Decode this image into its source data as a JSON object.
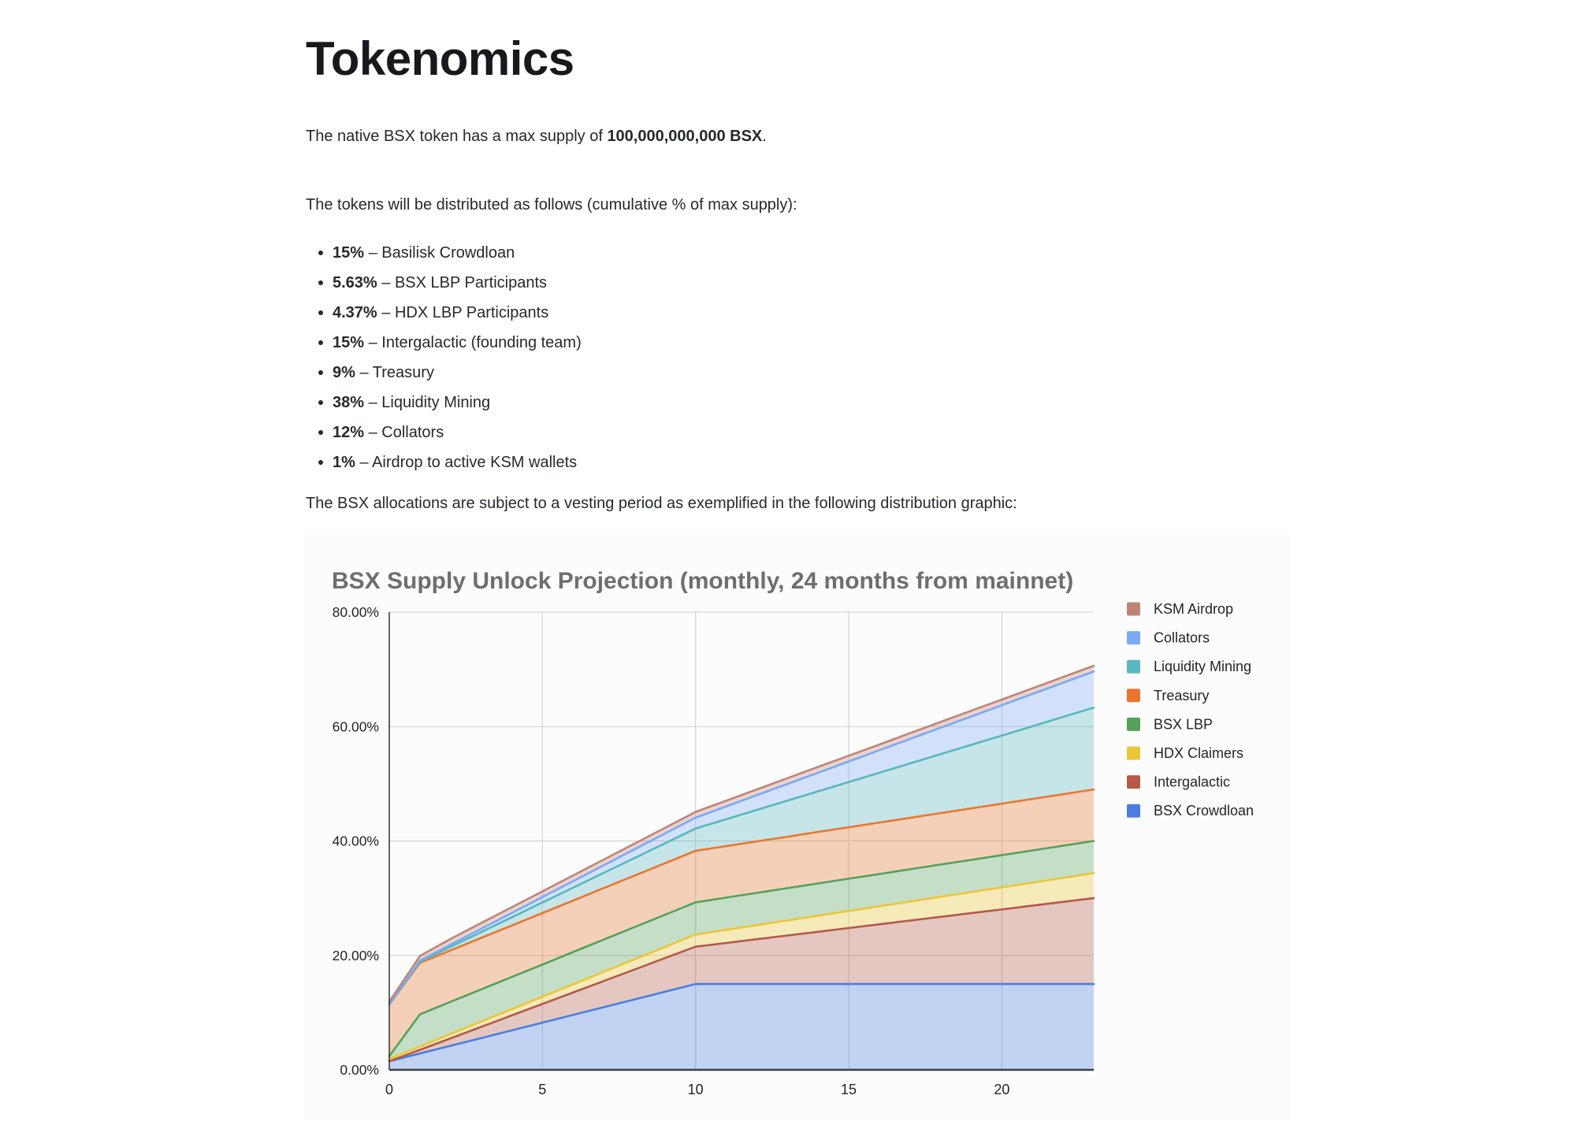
{
  "page": {
    "title": "Tokenomics",
    "intro": {
      "prefix": "The native BSX token has a max supply of ",
      "bold": "100,000,000,000 BSX",
      "suffix": "."
    },
    "distribution_intro": "The tokens will be distributed as follows (cumulative % of max supply):",
    "bullets": [
      {
        "pct": "15%",
        "rest": "– Basilisk Crowdloan"
      },
      {
        "pct": "5.63%",
        "rest": "– BSX LBP Participants"
      },
      {
        "pct": "4.37%",
        "rest": "– HDX LBP Participants"
      },
      {
        "pct": "15%",
        "rest": "– Intergalactic (founding team)"
      },
      {
        "pct": "9%",
        "rest": "– Treasury"
      },
      {
        "pct": "38%",
        "rest": "– Liquidity Mining"
      },
      {
        "pct": "12%",
        "rest": "– Collators"
      },
      {
        "pct": "1%",
        "rest": "– Airdrop to active KSM wallets"
      }
    ],
    "vesting_text": "The BSX allocations are subject to a vesting period as exemplified in the following distribution graphic:"
  },
  "chart_data": {
    "type": "area",
    "stacked": true,
    "title": "BSX Supply Unlock Projection (monthly, 24 months from mainnet)",
    "title_color": "#6e6e6e",
    "xlabel": "",
    "ylabel": "",
    "xlim": [
      0,
      23
    ],
    "ylim": [
      0,
      80
    ],
    "grid": true,
    "legend_position": "right",
    "x": [
      0,
      1,
      2,
      3,
      4,
      5,
      6,
      7,
      8,
      9,
      10,
      11,
      12,
      13,
      14,
      15,
      16,
      17,
      18,
      19,
      20,
      21,
      22,
      23
    ],
    "xticks": [
      0,
      5,
      10,
      15,
      20
    ],
    "yticks": [
      {
        "value": 0,
        "label": "0.00%"
      },
      {
        "value": 20,
        "label": "20.00%"
      },
      {
        "value": 40,
        "label": "40.00%"
      },
      {
        "value": 60,
        "label": "60.00%"
      },
      {
        "value": 80,
        "label": "80.00%"
      }
    ],
    "series": [
      {
        "name": "BSX Crowdloan",
        "color": "#4a7de0",
        "values": [
          1.5,
          2.85,
          4.2,
          5.55,
          6.9,
          8.25,
          9.6,
          10.95,
          12.3,
          13.65,
          15,
          15,
          15,
          15,
          15,
          15,
          15,
          15,
          15,
          15,
          15,
          15,
          15,
          15
        ]
      },
      {
        "name": "Intergalactic",
        "color": "#b45a47",
        "values": [
          0,
          0.65,
          1.3,
          1.96,
          2.61,
          3.26,
          3.91,
          4.57,
          5.22,
          5.87,
          6.52,
          7.17,
          7.83,
          8.48,
          9.13,
          9.78,
          10.43,
          11.09,
          11.74,
          12.39,
          13.04,
          13.7,
          14.35,
          15
        ]
      },
      {
        "name": "HDX Claimers",
        "color": "#e9c638",
        "values": [
          0.4,
          0.57,
          0.75,
          0.92,
          1.09,
          1.26,
          1.44,
          1.61,
          1.78,
          1.95,
          2.13,
          2.3,
          2.47,
          2.64,
          2.82,
          2.99,
          3.16,
          3.33,
          3.51,
          3.68,
          3.85,
          4.02,
          4.2,
          4.37
        ]
      },
      {
        "name": "BSX LBP",
        "color": "#55a05a",
        "values": [
          0.5,
          5.63,
          5.63,
          5.63,
          5.63,
          5.63,
          5.63,
          5.63,
          5.63,
          5.63,
          5.63,
          5.63,
          5.63,
          5.63,
          5.63,
          5.63,
          5.63,
          5.63,
          5.63,
          5.63,
          5.63,
          5.63,
          5.63,
          5.63
        ]
      },
      {
        "name": "Treasury",
        "color": "#e8762e",
        "values": [
          9,
          9,
          9,
          9,
          9,
          9,
          9,
          9,
          9,
          9,
          9,
          9,
          9,
          9,
          9,
          9,
          9,
          9,
          9,
          9,
          9,
          9,
          9,
          9
        ]
      },
      {
        "name": "Liquidity Mining",
        "color": "#58b7c0",
        "values": [
          0,
          0.2,
          0.61,
          1.02,
          1.43,
          1.84,
          2.25,
          2.66,
          3.07,
          3.48,
          3.9,
          4.7,
          5.5,
          6.3,
          7.1,
          7.9,
          8.7,
          9.5,
          10.3,
          11.1,
          11.9,
          12.7,
          13.5,
          14.3
        ]
      },
      {
        "name": "Collators",
        "color": "#7ba9f2",
        "values": [
          0,
          0.19,
          0.38,
          0.57,
          0.76,
          0.95,
          1.14,
          1.33,
          1.52,
          1.71,
          1.9,
          2.24,
          2.58,
          2.92,
          3.26,
          3.6,
          3.94,
          4.28,
          4.62,
          4.96,
          5.3,
          5.64,
          5.98,
          6.32
        ]
      },
      {
        "name": "KSM Airdrop",
        "color": "#c08477",
        "values": [
          0.5,
          0.8,
          1,
          1,
          1,
          1,
          1,
          1,
          1,
          1,
          1,
          1,
          1,
          1,
          1,
          1,
          1,
          1,
          1,
          1,
          1,
          1,
          1,
          1
        ]
      }
    ],
    "legend": [
      {
        "label": "KSM Airdrop",
        "color": "#c08477"
      },
      {
        "label": "Collators",
        "color": "#7ba9f2"
      },
      {
        "label": "Liquidity Mining",
        "color": "#58b7c0"
      },
      {
        "label": "Treasury",
        "color": "#e8762e"
      },
      {
        "label": "BSX LBP",
        "color": "#55a05a"
      },
      {
        "label": "HDX Claimers",
        "color": "#e9c638"
      },
      {
        "label": "Intergalactic",
        "color": "#b45a47"
      },
      {
        "label": "BSX Crowdloan",
        "color": "#4a7de0"
      }
    ]
  }
}
